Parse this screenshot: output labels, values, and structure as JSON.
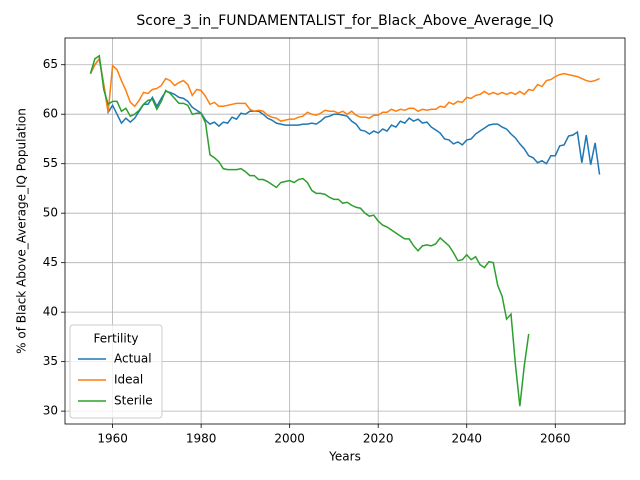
{
  "chart_data": {
    "type": "line",
    "title": "Score_3_in_FUNDAMENTALIST_for_Black_Above_Average_IQ",
    "x_label": "Years",
    "y_label": "% of Black Above_Average_IQ Population",
    "legend_title": "Fertility",
    "legend": "lower left",
    "grid": true,
    "x": [
      1955,
      1956,
      1957,
      1958,
      1959,
      1960,
      1961,
      1962,
      1963,
      1964,
      1965,
      1966,
      1967,
      1968,
      1969,
      1970,
      1971,
      1972,
      1973,
      1974,
      1975,
      1976,
      1977,
      1978,
      1979,
      1980,
      1981,
      1982,
      1983,
      1984,
      1985,
      1986,
      1987,
      1988,
      1989,
      1990,
      1991,
      1992,
      1993,
      1994,
      1995,
      1996,
      1997,
      1998,
      1999,
      2000,
      2001,
      2002,
      2003,
      2004,
      2005,
      2006,
      2007,
      2008,
      2009,
      2010,
      2011,
      2012,
      2013,
      2014,
      2015,
      2016,
      2017,
      2018,
      2019,
      2020,
      2021,
      2022,
      2023,
      2024,
      2025,
      2026,
      2027,
      2028,
      2029,
      2030,
      2031,
      2032,
      2033,
      2034,
      2035,
      2036,
      2037,
      2038,
      2039,
      2040,
      2041,
      2042,
      2043,
      2044,
      2045,
      2046,
      2047,
      2048,
      2049,
      2050,
      2051,
      2052,
      2053,
      2054,
      2055,
      2056,
      2057,
      2058,
      2059,
      2060,
      2061,
      2062,
      2063,
      2064,
      2065,
      2066,
      2067,
      2068,
      2069,
      2070
    ],
    "series": [
      {
        "name": "Actual",
        "color": "#1f77b4",
        "values": [
          64.1,
          65.0,
          65.6,
          63.0,
          60.2,
          60.9,
          60.0,
          59.1,
          59.6,
          59.2,
          59.6,
          60.3,
          61.0,
          61.0,
          61.7,
          60.8,
          61.6,
          62.3,
          62.2,
          62.0,
          61.7,
          61.6,
          61.3,
          60.7,
          60.4,
          60.1,
          59.4,
          59.0,
          59.2,
          58.8,
          59.2,
          59.1,
          59.7,
          59.5,
          60.1,
          60.0,
          60.3,
          60.3,
          60.3,
          60.0,
          59.6,
          59.4,
          59.1,
          59.0,
          58.9,
          58.9,
          58.9,
          58.9,
          59.0,
          59.0,
          59.1,
          59.0,
          59.3,
          59.7,
          59.8,
          60.0,
          60.0,
          59.9,
          59.8,
          59.3,
          59.0,
          58.4,
          58.3,
          58.0,
          58.3,
          58.1,
          58.5,
          58.3,
          58.9,
          58.7,
          59.3,
          59.1,
          59.6,
          59.3,
          59.5,
          59.1,
          59.2,
          58.7,
          58.4,
          58.1,
          57.5,
          57.4,
          57.0,
          57.2,
          56.9,
          57.4,
          57.5,
          58.0,
          58.3,
          58.6,
          58.9,
          59.0,
          59.0,
          58.7,
          58.5,
          58.0,
          57.6,
          57.0,
          56.5,
          55.8,
          55.6,
          55.1,
          55.3,
          55.0,
          55.8,
          55.8,
          56.8,
          56.9,
          57.8,
          57.9,
          58.2,
          55.1,
          57.9,
          54.9,
          57.1,
          53.9
        ]
      },
      {
        "name": "Ideal",
        "color": "#ff7f0e",
        "values": [
          64.1,
          65.0,
          65.6,
          63.0,
          60.2,
          64.9,
          64.5,
          63.4,
          62.4,
          61.2,
          60.8,
          61.4,
          62.2,
          62.1,
          62.5,
          62.6,
          62.9,
          63.6,
          63.4,
          62.9,
          63.2,
          63.4,
          63.0,
          61.9,
          62.5,
          62.4,
          61.8,
          61.0,
          61.2,
          60.8,
          60.8,
          60.9,
          61.0,
          61.1,
          61.1,
          61.1,
          60.5,
          60.3,
          60.4,
          60.3,
          59.9,
          59.7,
          59.6,
          59.3,
          59.4,
          59.5,
          59.5,
          59.7,
          59.8,
          60.2,
          60.0,
          59.9,
          60.1,
          60.4,
          60.3,
          60.3,
          60.1,
          60.3,
          60.0,
          60.3,
          59.9,
          59.7,
          59.7,
          59.6,
          59.9,
          59.9,
          60.2,
          60.2,
          60.5,
          60.3,
          60.5,
          60.4,
          60.6,
          60.6,
          60.3,
          60.5,
          60.4,
          60.5,
          60.5,
          60.8,
          60.7,
          61.2,
          61.0,
          61.3,
          61.2,
          61.7,
          61.6,
          61.9,
          62.0,
          62.3,
          62.0,
          62.2,
          62.0,
          62.2,
          62.0,
          62.2,
          62.0,
          62.3,
          62.0,
          62.5,
          62.4,
          63.0,
          62.8,
          63.4,
          63.5,
          63.8,
          64.0,
          64.1,
          64.0,
          63.9,
          63.8,
          63.6,
          63.4,
          63.3,
          63.4,
          63.6
        ]
      },
      {
        "name": "Sterile",
        "color": "#2ca02c",
        "values": [
          64.1,
          65.6,
          65.9,
          62.5,
          61.0,
          61.3,
          61.3,
          60.3,
          60.6,
          59.8,
          60.0,
          60.4,
          61.0,
          61.4,
          61.5,
          60.5,
          61.3,
          62.4,
          62.1,
          61.6,
          61.1,
          61.1,
          60.9,
          60.0,
          60.1,
          60.1,
          59.1,
          55.9,
          55.6,
          55.2,
          54.5,
          54.4,
          54.4,
          54.4,
          54.5,
          54.2,
          53.8,
          53.8,
          53.4,
          53.4,
          53.2,
          52.9,
          52.6,
          53.1,
          53.2,
          53.3,
          53.1,
          53.4,
          53.5,
          53.1,
          52.3,
          52.0,
          52.0,
          51.9,
          51.6,
          51.4,
          51.4,
          51.0,
          51.1,
          50.8,
          50.6,
          50.5,
          50.0,
          49.7,
          49.8,
          49.2,
          48.8,
          48.6,
          48.3,
          48.0,
          47.7,
          47.4,
          47.4,
          46.7,
          46.2,
          46.7,
          46.8,
          46.7,
          46.9,
          47.5,
          47.1,
          46.7,
          46.0,
          45.2,
          45.3,
          45.8,
          45.3,
          45.6,
          44.8,
          44.5,
          45.1,
          45.0,
          42.7,
          41.6,
          39.3,
          39.8,
          34.7,
          30.5,
          34.6,
          37.8,
          null,
          null,
          null,
          null,
          null,
          null,
          null,
          null,
          null,
          null,
          null,
          null,
          null,
          null,
          null,
          null
        ]
      }
    ],
    "xlim": [
      1949.25,
      2075.75
    ],
    "ylim": [
      28.7,
      67.7
    ],
    "xticks": [
      1960,
      1980,
      2000,
      2020,
      2040,
      2060
    ],
    "yticks": [
      30,
      35,
      40,
      45,
      50,
      55,
      60,
      65
    ]
  }
}
